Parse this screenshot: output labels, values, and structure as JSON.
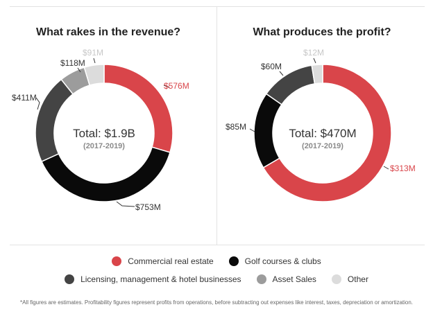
{
  "colors": {
    "commercial": "#d9454a",
    "golf": "#0a0a0a",
    "licensing": "#444444",
    "asset": "#9c9c9c",
    "other": "#dcdcdc"
  },
  "chart_data": [
    {
      "type": "pie",
      "title": "What rakes in the revenue?",
      "center_label": "Total: $1.9B",
      "center_sublabel": "(2017-2019)",
      "categories": [
        "Commercial real estate",
        "Golf courses & clubs",
        "Licensing, management & hotel businesses",
        "Asset Sales",
        "Other"
      ],
      "values": [
        576,
        753,
        411,
        118,
        91
      ],
      "labels": [
        "$576M",
        "$753M",
        "$411M",
        "$118M",
        "$91M"
      ]
    },
    {
      "type": "pie",
      "title": "What produces the profit?",
      "center_label": "Total: $470M",
      "center_sublabel": "(2017-2019)",
      "categories": [
        "Commercial real estate",
        "Golf courses & clubs",
        "Licensing, management & hotel businesses",
        "Other"
      ],
      "values": [
        313,
        85,
        60,
        12
      ],
      "labels": [
        "$313M",
        "$85M",
        "$60M",
        "$12M"
      ]
    }
  ],
  "legend": {
    "row1": [
      "Commercial real estate",
      "Golf courses & clubs"
    ],
    "row2": [
      "Licensing, management & hotel businesses",
      "Asset Sales",
      "Other"
    ]
  },
  "footnote": "*All figures are estimates. Profitability figures represent profits from operations, before subtracting out expenses like interest, taxes, depreciation or amortization."
}
